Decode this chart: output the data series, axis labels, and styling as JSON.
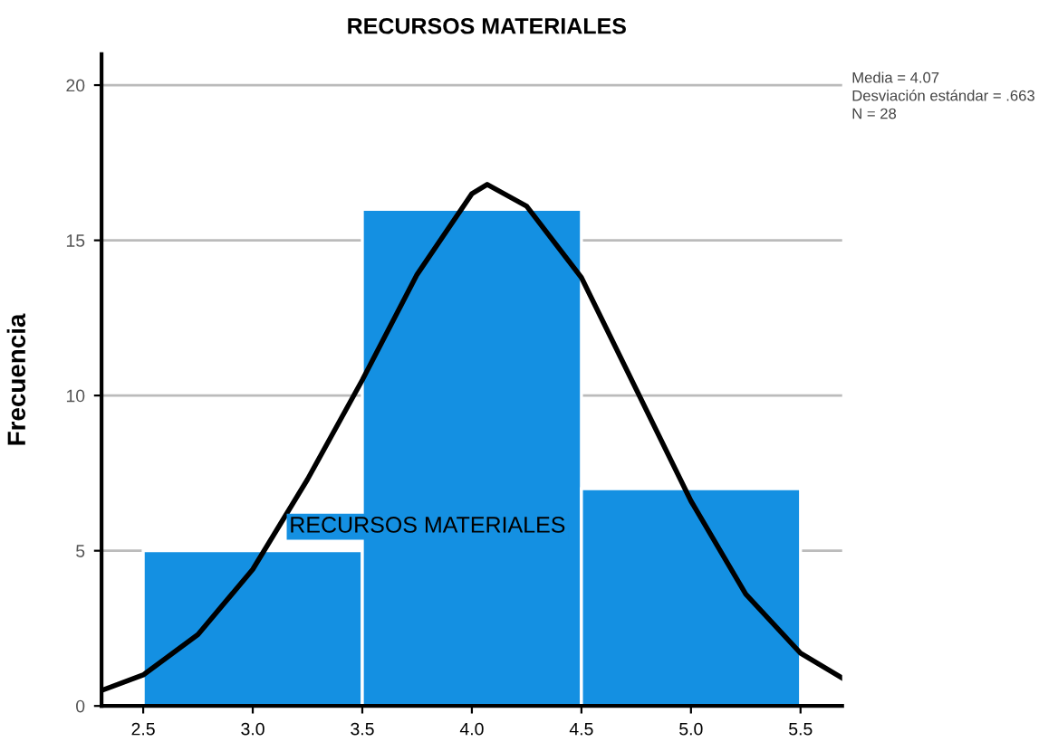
{
  "chart_data": {
    "type": "histogram",
    "title": "RECURSOS MATERIALES",
    "ylabel": "Frecuencia",
    "bins": [
      2.5,
      3.5,
      4.5,
      5.5
    ],
    "values": [
      5,
      16,
      7
    ],
    "color": "#1490e2",
    "series": [
      {
        "type": "line",
        "color": "#000000",
        "x": [
          2.31,
          2.5,
          2.75,
          3.0,
          3.25,
          3.5,
          3.75,
          4.0,
          4.07,
          4.25,
          4.5,
          4.75,
          5.0,
          5.25,
          5.5,
          5.69
        ],
        "values": [
          0.5,
          1.0,
          2.3,
          4.4,
          7.3,
          10.5,
          13.9,
          16.5,
          16.8,
          16.1,
          13.8,
          10.2,
          6.6,
          3.6,
          1.7,
          0.9
        ]
      }
    ],
    "xlim": [
      2.31,
      5.69
    ],
    "ylim": [
      0,
      21
    ],
    "xticks": [
      2.5,
      {
        "value": 3.0,
        "label": "3.0"
      },
      3.5,
      {
        "value": 4.0,
        "label": "4.0"
      },
      4.5,
      {
        "value": 5.0,
        "label": "5.0"
      },
      5.5
    ],
    "yticks": [
      0,
      5,
      10,
      15,
      20
    ],
    "grid": "y",
    "annotations": [
      "Media = 4.07",
      "Desviación estándar = .663",
      "N = 28",
      "RECURSOS MATERIALES"
    ]
  }
}
